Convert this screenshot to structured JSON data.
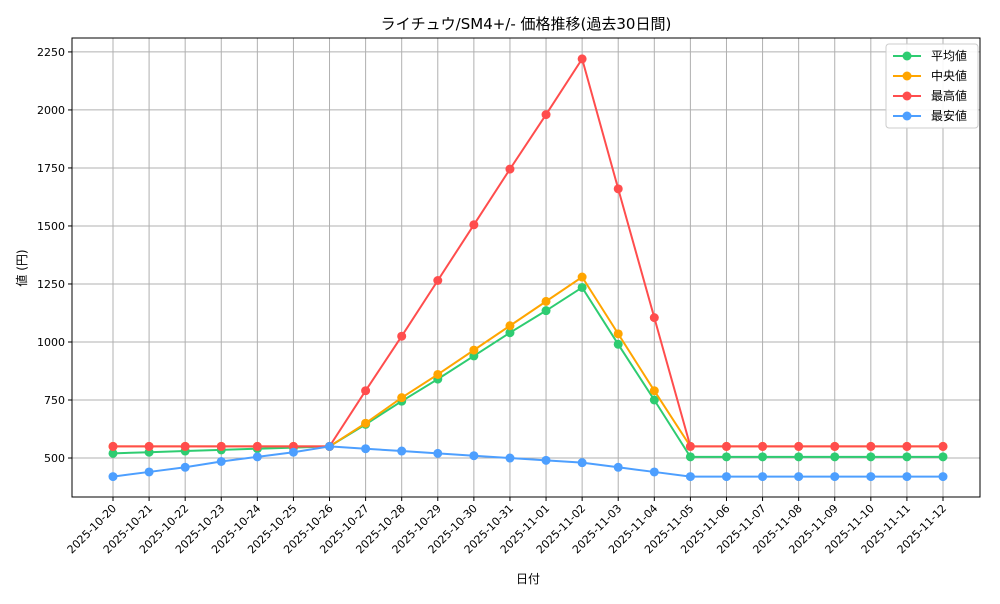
{
  "chart_data": {
    "type": "line",
    "title": "ライチュウ/SM4+/- 価格推移(過去30日間)",
    "xlabel": "日付",
    "ylabel": "値 (円)",
    "ylim": [
      332,
      2310
    ],
    "yticks": [
      500,
      750,
      1000,
      1250,
      1500,
      1750,
      2000,
      2250
    ],
    "grid": true,
    "legend": "top-right",
    "categories": [
      "2025-10-20",
      "2025-10-21",
      "2025-10-22",
      "2025-10-23",
      "2025-10-24",
      "2025-10-25",
      "2025-10-26",
      "2025-10-27",
      "2025-10-28",
      "2025-10-29",
      "2025-10-30",
      "2025-10-31",
      "2025-11-01",
      "2025-11-02",
      "2025-11-03",
      "2025-11-04",
      "2025-11-05",
      "2025-11-06",
      "2025-11-07",
      "2025-11-08",
      "2025-11-09",
      "2025-11-10",
      "2025-11-11",
      "2025-11-12"
    ],
    "series": [
      {
        "name": "平均値",
        "color": "#2ecc71",
        "values": [
          520,
          525,
          530,
          535,
          540,
          545,
          550,
          645,
          745,
          840,
          940,
          1040,
          1135,
          1235,
          990,
          750,
          505,
          505,
          505,
          505,
          505,
          505,
          505,
          505
        ]
      },
      {
        "name": "中央値",
        "color": "#ffa500",
        "values": [
          550,
          550,
          550,
          550,
          550,
          550,
          550,
          650,
          760,
          860,
          965,
          1070,
          1175,
          1280,
          1035,
          790,
          550,
          550,
          550,
          550,
          550,
          550,
          550,
          550
        ]
      },
      {
        "name": "最高値",
        "color": "#ff4d4d",
        "values": [
          550,
          550,
          550,
          550,
          550,
          550,
          550,
          790,
          1025,
          1265,
          1505,
          1745,
          1980,
          2220,
          1660,
          1105,
          550,
          550,
          550,
          550,
          550,
          550,
          550,
          550
        ]
      },
      {
        "name": "最安値",
        "color": "#4d9fff",
        "values": [
          420,
          440,
          460,
          485,
          505,
          525,
          550,
          540,
          530,
          520,
          510,
          500,
          490,
          480,
          460,
          440,
          420,
          420,
          420,
          420,
          420,
          420,
          420,
          420
        ]
      }
    ]
  }
}
